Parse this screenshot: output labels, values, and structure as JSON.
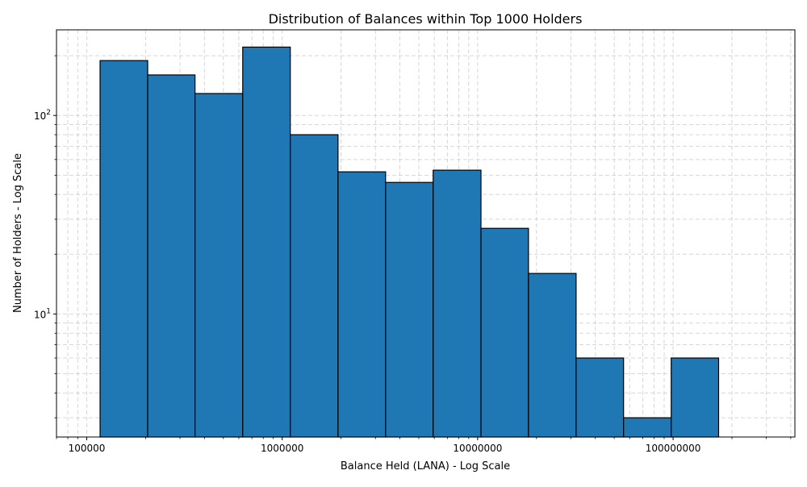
{
  "chart_data": {
    "type": "bar",
    "title": "Distribution of Balances within Top 1000 Holders",
    "xlabel": "Balance Held (LANA) - Log Scale",
    "ylabel": "Number of Holders - Log Scale",
    "x_scale": "log",
    "y_scale": "log",
    "xlim": [
      70000,
      420000000
    ],
    "ylim": [
      2.4,
      270
    ],
    "grid": true,
    "bar_color": "#1f77b4",
    "edge_color": "#000000",
    "bins": [
      {
        "x0": 117000,
        "x1": 205000,
        "value": 189
      },
      {
        "x0": 205000,
        "x1": 358000,
        "value": 160
      },
      {
        "x0": 358000,
        "x1": 628000,
        "value": 129
      },
      {
        "x0": 628000,
        "x1": 1100000,
        "value": 221
      },
      {
        "x0": 1100000,
        "x1": 1930000,
        "value": 80
      },
      {
        "x0": 1930000,
        "x1": 3380000,
        "value": 52
      },
      {
        "x0": 3380000,
        "x1": 5920000,
        "value": 46
      },
      {
        "x0": 5920000,
        "x1": 10400000,
        "value": 53
      },
      {
        "x0": 10400000,
        "x1": 18200000,
        "value": 27
      },
      {
        "x0": 18200000,
        "x1": 31900000,
        "value": 16
      },
      {
        "x0": 31900000,
        "x1": 55800000,
        "value": 6
      },
      {
        "x0": 55800000,
        "x1": 97800000,
        "value": 3
      },
      {
        "x0": 97800000,
        "x1": 171000000,
        "value": 6
      }
    ],
    "x_ticks": [
      {
        "value": 100000,
        "label": "100000"
      },
      {
        "value": 1000000,
        "label": "1000000"
      },
      {
        "value": 10000000,
        "label": "10000000"
      },
      {
        "value": 100000000,
        "label": "100000000"
      }
    ],
    "y_ticks": [
      {
        "value": 10,
        "base": "10",
        "exp": "1"
      },
      {
        "value": 100,
        "base": "10",
        "exp": "2"
      }
    ]
  }
}
